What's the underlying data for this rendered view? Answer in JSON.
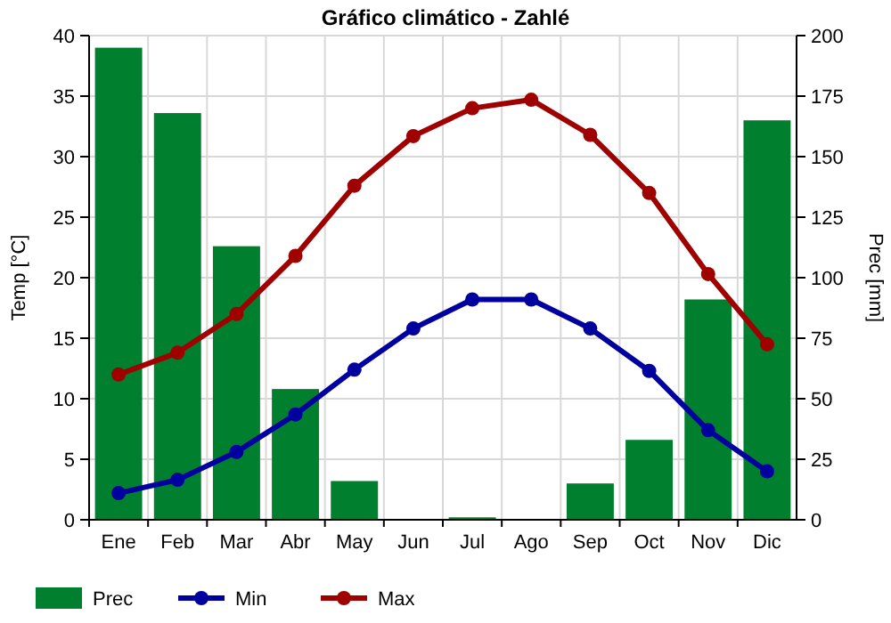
{
  "chart_data": {
    "type": "bar",
    "title": "Gráfico climático - Zahlé",
    "categories": [
      "Ene",
      "Feb",
      "Mar",
      "Abr",
      "May",
      "Jun",
      "Jul",
      "Ago",
      "Sep",
      "Oct",
      "Nov",
      "Dic"
    ],
    "ylabel": "Temp [°C]",
    "y2label": "Prec [mm]",
    "ylim": [
      0,
      40
    ],
    "yticks": [
      0,
      5,
      10,
      15,
      20,
      25,
      30,
      35,
      40
    ],
    "y2lim": [
      0,
      200
    ],
    "y2ticks": [
      0,
      25,
      50,
      75,
      100,
      125,
      150,
      175,
      200
    ],
    "grid": true,
    "legend": "bottom left",
    "marker": "circle",
    "series": [
      {
        "name": "Prec",
        "axis": "y2",
        "color": "#007f2f",
        "values": [
          195,
          168,
          113,
          54,
          16,
          0,
          1,
          0,
          15,
          33,
          91,
          165
        ]
      },
      {
        "name": "Min",
        "type": "line",
        "color": "#00009f",
        "values": [
          2.2,
          3.3,
          5.6,
          8.7,
          12.4,
          15.8,
          18.2,
          18.2,
          15.8,
          12.3,
          7.4,
          4.0
        ]
      },
      {
        "name": "Max",
        "type": "line",
        "color": "#9f0000",
        "values": [
          12.0,
          13.8,
          17.0,
          21.8,
          27.6,
          31.7,
          34.0,
          34.7,
          31.8,
          27.0,
          20.3,
          14.5
        ]
      }
    ]
  }
}
